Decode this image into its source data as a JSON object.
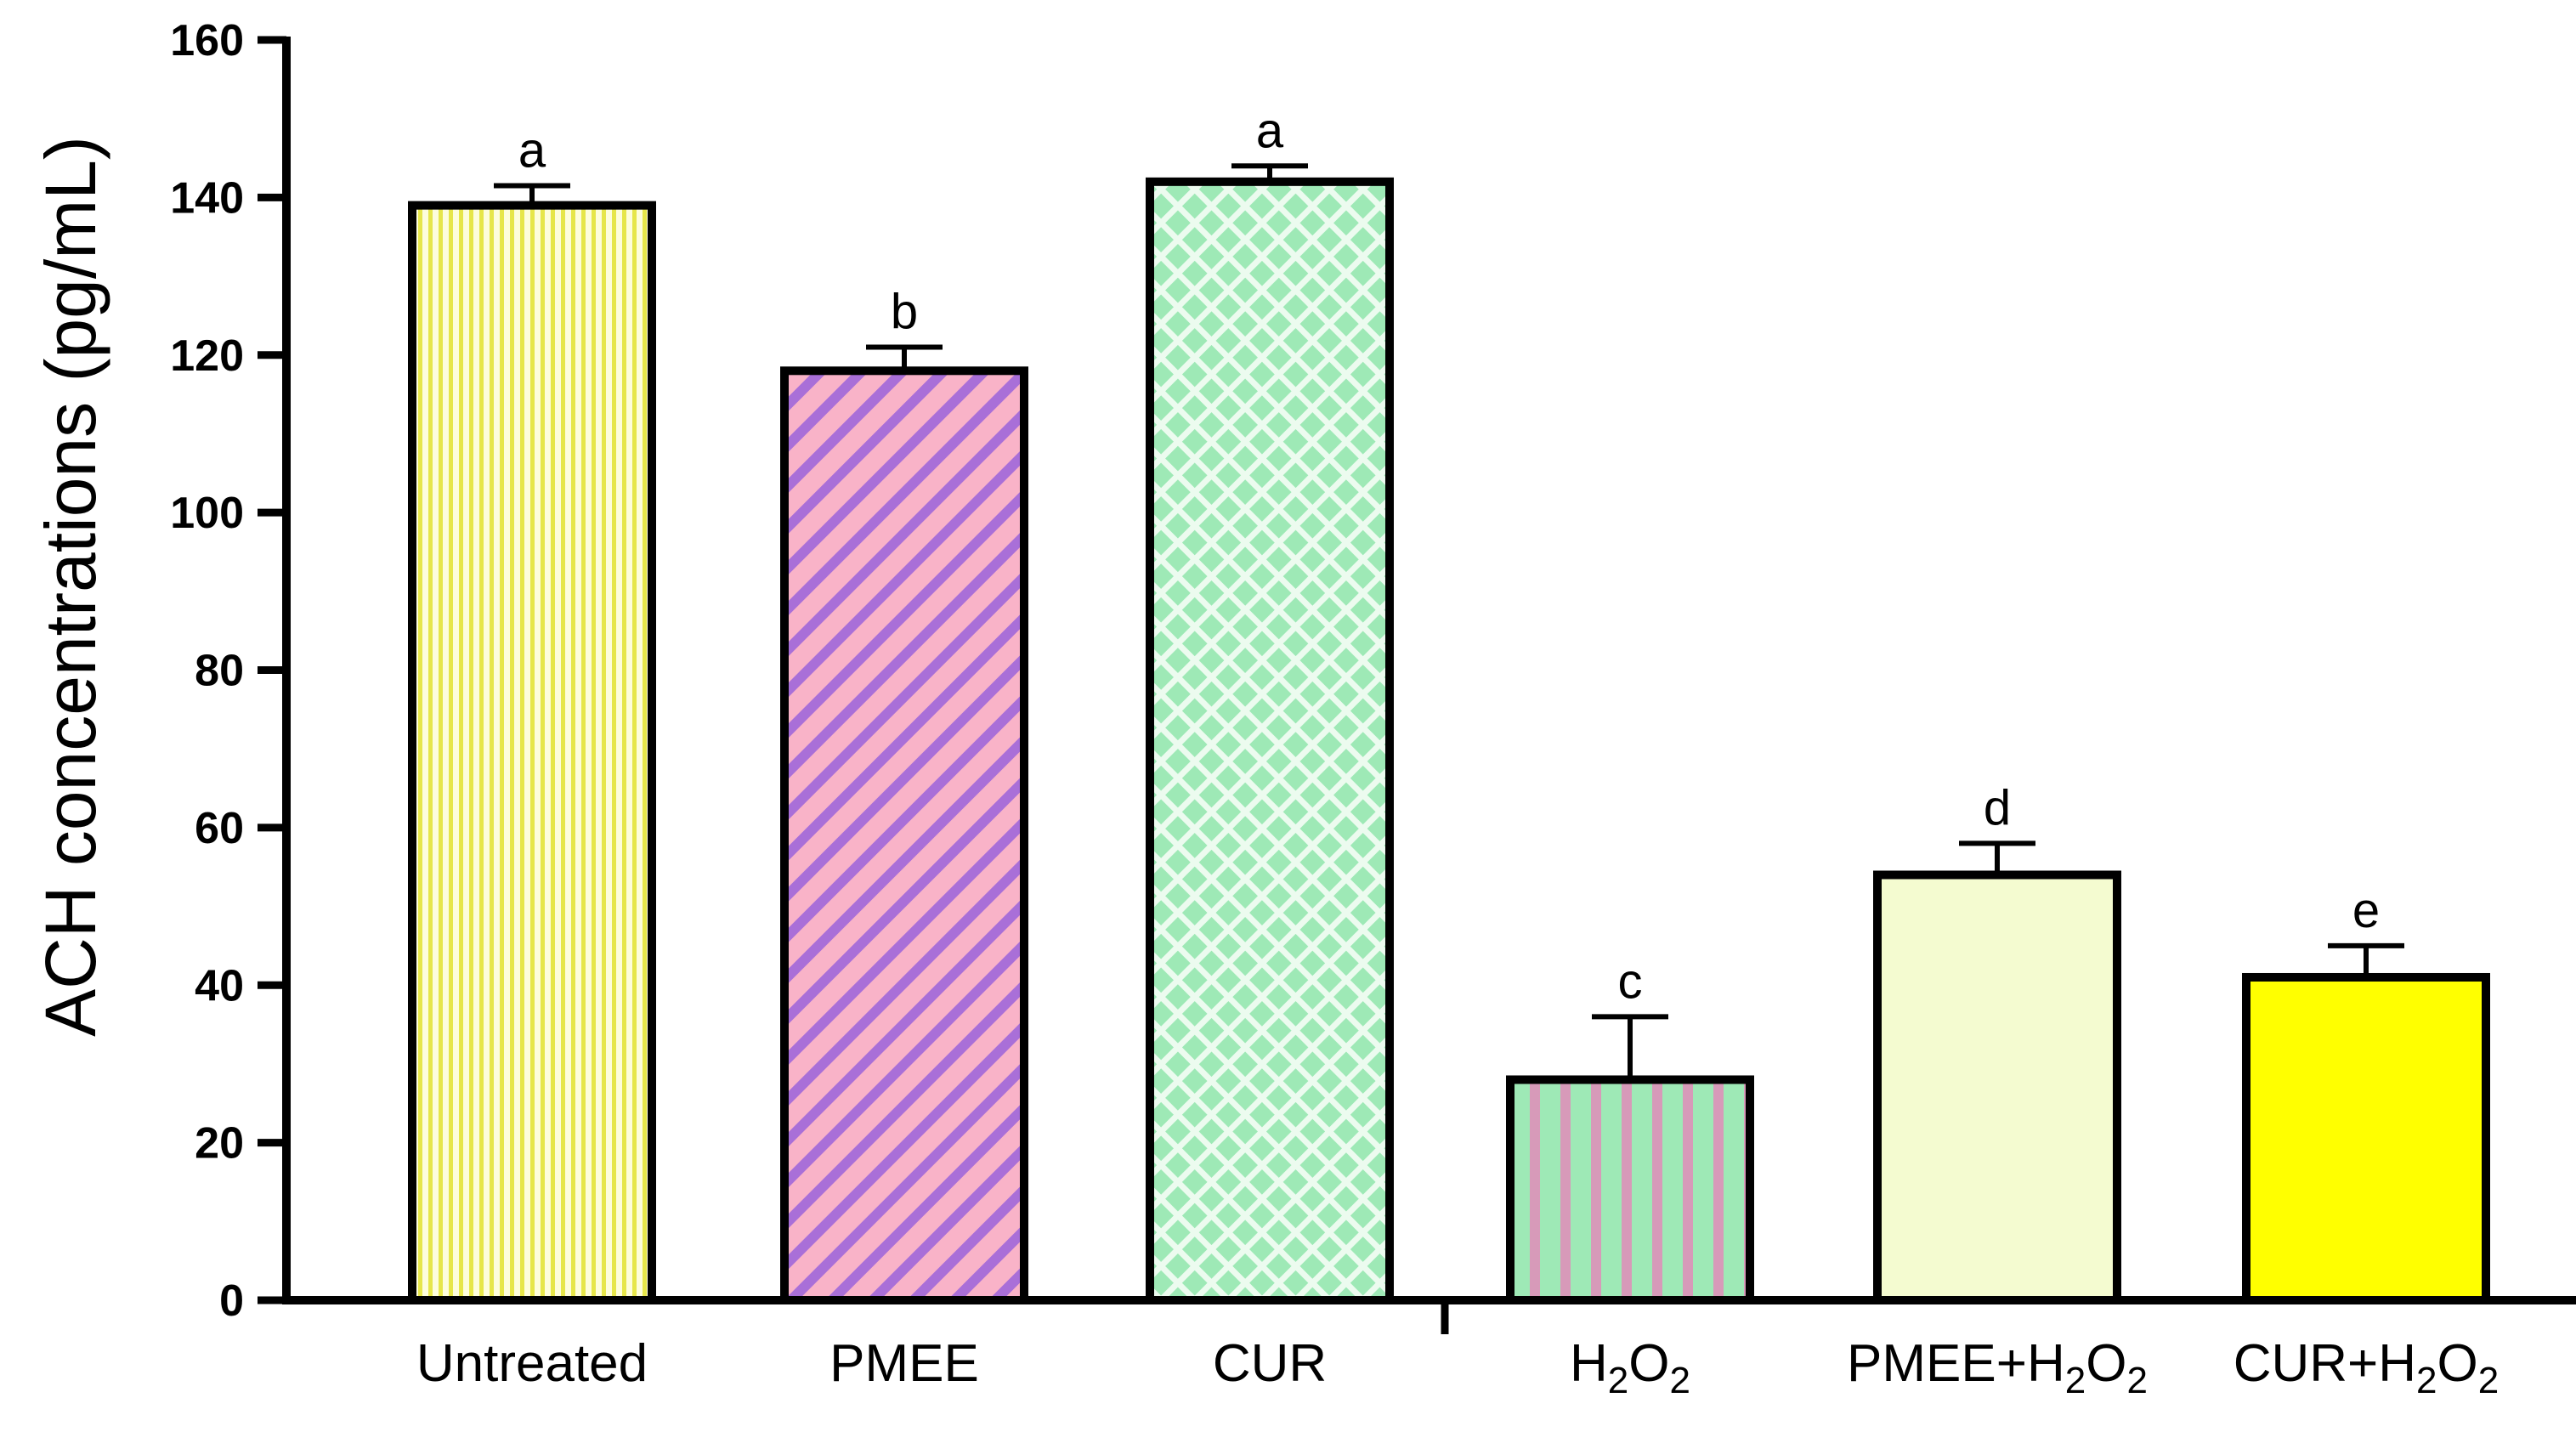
{
  "chart_data": {
    "type": "bar",
    "title": "",
    "xlabel": "",
    "ylabel": "ACH concentrations (pg/mL)",
    "ylim": [
      0,
      160
    ],
    "yticks": [
      0,
      20,
      40,
      60,
      80,
      100,
      120,
      140,
      160
    ],
    "grid": false,
    "categories": [
      {
        "label": "Untreated",
        "sub": "",
        "suffix": ""
      },
      {
        "label": "PMEE",
        "sub": "",
        "suffix": ""
      },
      {
        "label": "CUR",
        "sub": "",
        "suffix": ""
      },
      {
        "label": "H",
        "sub": "2",
        "suffix": "O",
        "sub2": "2"
      },
      {
        "label": "PMEE+H",
        "sub": "2",
        "suffix": "O",
        "sub2": "2"
      },
      {
        "label": "CUR+H",
        "sub": "2",
        "suffix": "O",
        "sub2": "2"
      }
    ],
    "values": [
      139,
      118,
      142,
      28,
      54,
      41
    ],
    "errors": [
      2.5,
      3,
      2,
      8,
      4,
      4
    ],
    "significance": [
      "a",
      "b",
      "a",
      "c",
      "d",
      "e"
    ],
    "fills": [
      {
        "pattern": "vertical-fine",
        "base": "#fdfddc",
        "stripe": "#e6e64a"
      },
      {
        "pattern": "diagonal",
        "base": "#f9b3c8",
        "stripe": "#a96fd8"
      },
      {
        "pattern": "crosshatch",
        "base": "#9ee9b6",
        "stripe": "#ecfbef"
      },
      {
        "pattern": "vertical-wide",
        "base": "#9ee9b6",
        "stripe": "#d79ab9"
      },
      {
        "pattern": "solid",
        "base": "#f4fbd0",
        "stripe": ""
      },
      {
        "pattern": "solid",
        "base": "#ffff00",
        "stripe": ""
      }
    ],
    "group_separator_after_index": 2
  }
}
